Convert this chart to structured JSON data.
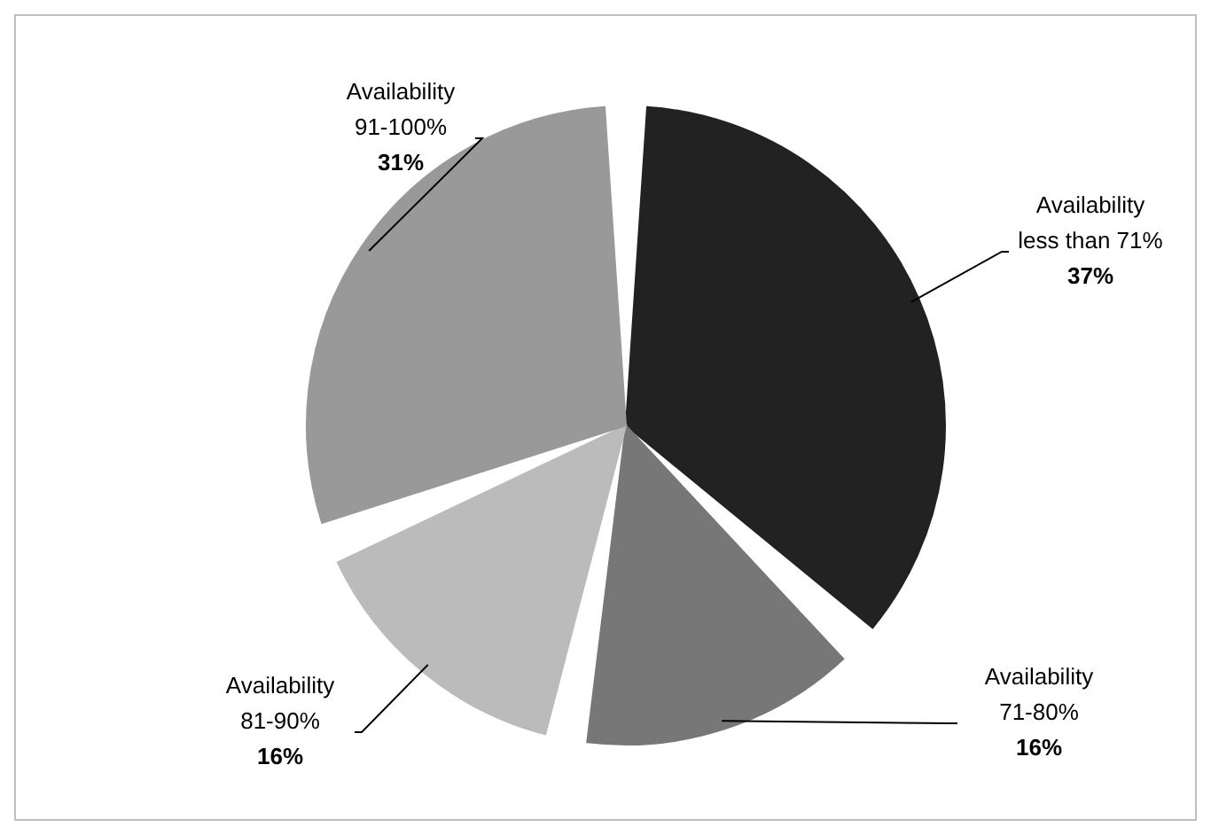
{
  "chart_data": {
    "type": "pie",
    "categories": [
      "Availability less than 71%",
      "Availability 71-80%",
      "Availability 81-90%",
      "Availability 91-100%"
    ],
    "values": [
      37,
      16,
      16,
      31
    ],
    "colors": [
      "#222222",
      "#777777",
      "#bbbbbb",
      "#999999"
    ],
    "value_labels": [
      "37%",
      "16%",
      "16%",
      "31%"
    ]
  }
}
